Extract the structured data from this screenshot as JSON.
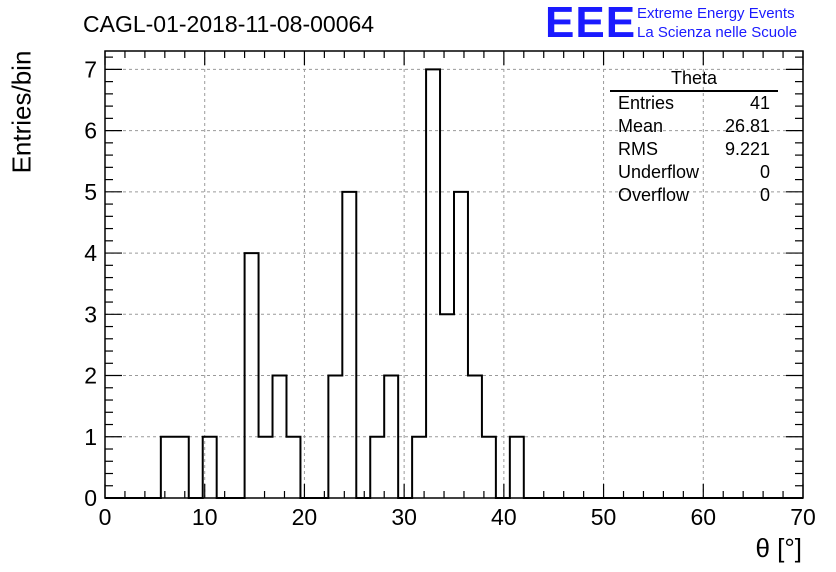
{
  "header": {
    "title": "CAGL-01-2018-11-08-00064",
    "logo": "EEE",
    "logo_line1": "Extreme Energy Events",
    "logo_line2": "La Scienza nelle Scuole"
  },
  "stats_box": {
    "name": "Theta",
    "rows": [
      {
        "label": "Entries",
        "value": "41"
      },
      {
        "label": "Mean",
        "value": "26.81"
      },
      {
        "label": "RMS",
        "value": "9.221"
      },
      {
        "label": "Underflow",
        "value": "0"
      },
      {
        "label": "Overflow",
        "value": "0"
      }
    ]
  },
  "colors": {
    "line": "#000000",
    "grid": "#9a9a9a",
    "logo": "#1a1aff"
  },
  "chart_data": {
    "type": "bar",
    "style": "step-histogram",
    "title": "CAGL-01-2018-11-08-00064",
    "xlabel": "θ [°]",
    "ylabel": "Entries/bin",
    "xlim": [
      0,
      70
    ],
    "ylim": [
      0,
      7.3
    ],
    "grid": true,
    "xticks": [
      0,
      10,
      20,
      30,
      40,
      50,
      60,
      70
    ],
    "yticks": [
      0,
      1,
      2,
      3,
      4,
      5,
      6,
      7
    ],
    "bin_edges": [
      0,
      1.4,
      2.8,
      4.2,
      5.6,
      7.0,
      8.4,
      9.8,
      11.2,
      12.6,
      14.0,
      15.4,
      16.8,
      18.2,
      19.6,
      21.0,
      22.4,
      23.8,
      25.2,
      26.6,
      28.0,
      29.4,
      30.8,
      32.2,
      33.6,
      35.0,
      36.4,
      37.8,
      39.2,
      40.6,
      42.0,
      43.4,
      44.8,
      46.2,
      47.6,
      49.0,
      50.4,
      51.8,
      53.2,
      54.6,
      56.0,
      57.4,
      58.8,
      60.2,
      61.6,
      63.0,
      64.4,
      65.8,
      67.2,
      68.6,
      70.0
    ],
    "values": [
      0,
      0,
      0,
      0,
      1,
      1,
      0,
      1,
      0,
      0,
      4,
      1,
      2,
      1,
      0,
      0,
      2,
      5,
      0,
      1,
      2,
      0,
      1,
      7,
      3,
      5,
      2,
      1,
      0,
      1,
      0,
      0,
      0,
      0,
      0,
      0,
      0,
      0,
      0,
      0,
      0,
      0,
      0,
      0,
      0,
      0,
      0,
      0,
      0,
      0
    ]
  }
}
